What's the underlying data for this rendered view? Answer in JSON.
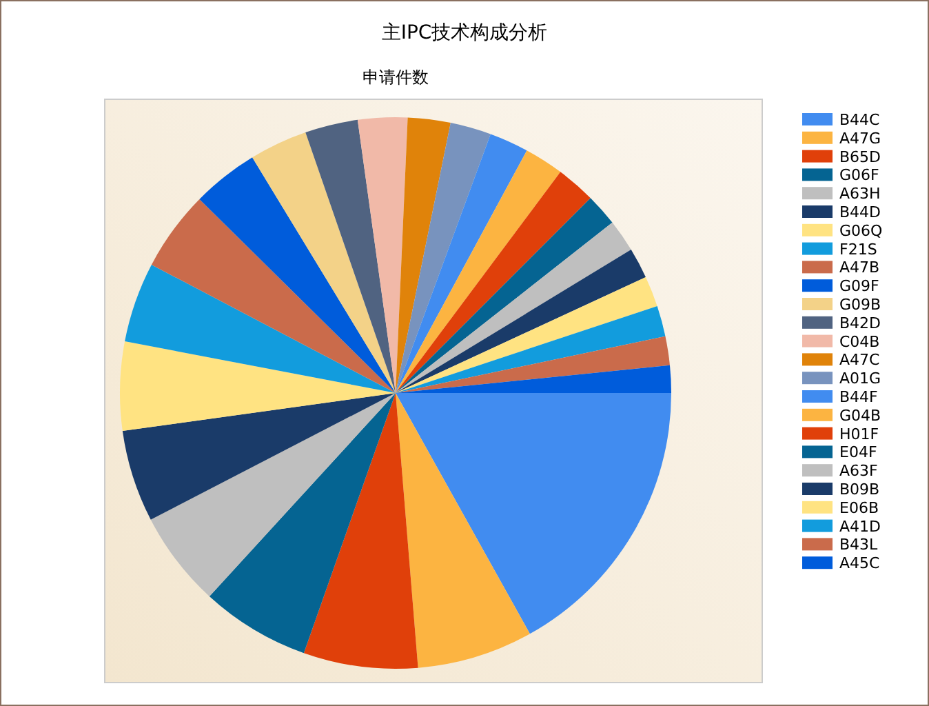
{
  "chart_data": {
    "type": "pie",
    "title": "主IPC技术构成分析",
    "subtitle": "申请件数",
    "legend": "right",
    "categories": [
      "B44C",
      "A47G",
      "B65D",
      "G06F",
      "A63H",
      "B44D",
      "G06Q",
      "F21S",
      "A47B",
      "G09F",
      "G09B",
      "B42D",
      "C04B",
      "A47C",
      "A01G",
      "B44F",
      "G04B",
      "H01F",
      "E04F",
      "A63F",
      "B09B",
      "E06B",
      "A41D",
      "B43L",
      "A45C"
    ],
    "values": [
      16.9,
      6.8,
      6.7,
      6.4,
      5.6,
      5.4,
      5.2,
      4.7,
      4.7,
      3.9,
      3.4,
      3.1,
      2.9,
      2.5,
      2.4,
      2.3,
      2.3,
      2.3,
      1.9,
      1.9,
      1.8,
      1.8,
      1.8,
      1.7,
      1.6
    ],
    "colors": [
      "#418cf0",
      "#fcb441",
      "#e0400a",
      "#056492",
      "#bfbfbf",
      "#1a3b69",
      "#ffe382",
      "#129cdd",
      "#ca6b4b",
      "#005cdb",
      "#f3d288",
      "#506381",
      "#f1b9a8",
      "#e0830a",
      "#7893be",
      "#418cf0",
      "#fcb441",
      "#e0400a",
      "#056492",
      "#bfbfbf",
      "#1a3b69",
      "#ffe382",
      "#129cdd",
      "#ca6b4b",
      "#005cdb"
    ]
  }
}
